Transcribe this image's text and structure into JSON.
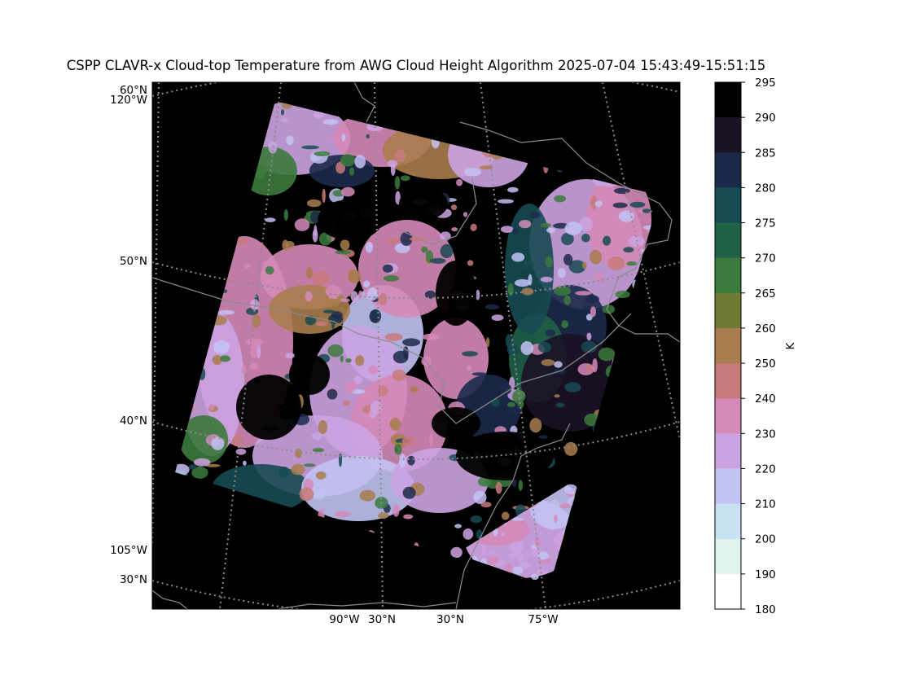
{
  "title": "CSPP CLAVR-x Cloud-top Temperature from AWG Cloud Height Algorithm 2025-07-04 15:43:49-15:51:15",
  "map": {
    "background": "#000000",
    "frame_color": "#000000",
    "graticule_color": "#8c8c8c",
    "coastline_color": "#8c8c8c",
    "left_labels": [
      "60°N",
      "120°W",
      "50°N",
      "40°N",
      "105°W",
      "30°N"
    ],
    "bottom_labels": [
      "90°W",
      "30°N",
      "30°N",
      "75°W"
    ]
  },
  "colorbar": {
    "label": "K",
    "ticks": [
      "295",
      "290",
      "285",
      "280",
      "275",
      "270",
      "265",
      "260",
      "250",
      "240",
      "230",
      "220",
      "210",
      "200",
      "190",
      "180"
    ],
    "colors": [
      "#000000",
      "#1b1226",
      "#1c2a4a",
      "#174a52",
      "#1f6248",
      "#3b7a3c",
      "#6f7a35",
      "#a87c4e",
      "#c87a7a",
      "#d58ab8",
      "#cca3e2",
      "#c2c2f3",
      "#c7e2f2",
      "#dff4ec",
      "#ffffff"
    ]
  },
  "cloud_palette": {
    "lightpink": "#d58ab8",
    "lavender": "#cca3e2",
    "periwinkle": "#c2c2f3",
    "tan": "#a87c4e",
    "olive": "#6f7a35",
    "green": "#3b7a3c",
    "darkgreen": "#1f6248",
    "teal": "#174a52",
    "navy": "#1c2a4a",
    "darkpurple": "#1b1226",
    "salmon": "#c87a7a"
  }
}
